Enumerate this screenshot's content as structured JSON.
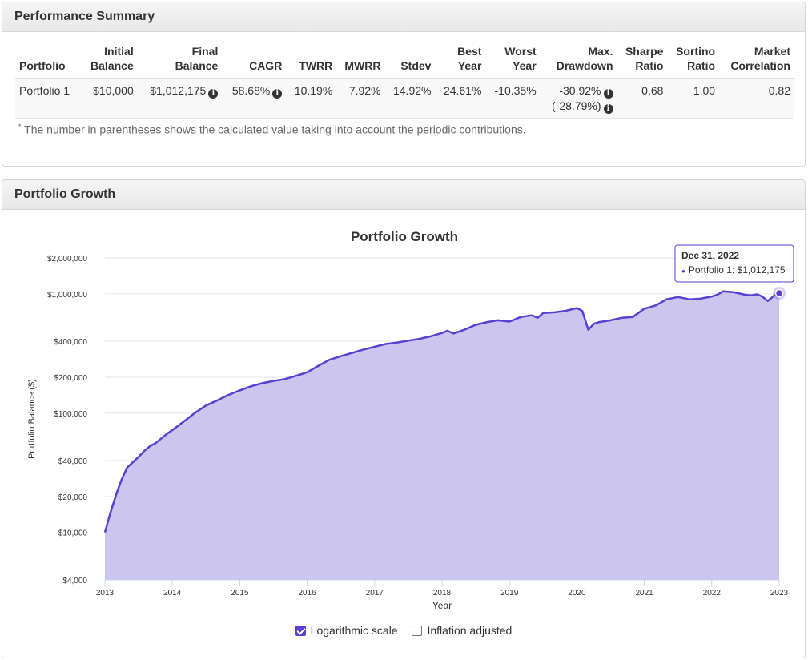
{
  "performance_summary": {
    "heading": "Performance Summary",
    "columns": [
      "Portfolio",
      "Initial\nBalance",
      "Final\nBalance",
      "CAGR",
      "TWRR",
      "MWRR",
      "Stdev",
      "Best\nYear",
      "Worst\nYear",
      "Max.\nDrawdown",
      "Sharpe\nRatio",
      "Sortino\nRatio",
      "Market\nCorrelation"
    ],
    "row": {
      "portfolio": "Portfolio 1",
      "initial_balance": "$10,000",
      "final_balance": "$1,012,175",
      "cagr": "58.68%",
      "twrr": "10.19%",
      "mwrr": "7.92%",
      "stdev": "14.92%",
      "best_year": "24.61%",
      "worst_year": "-10.35%",
      "max_drawdown": "-30.92%",
      "max_drawdown_contrib": "(-28.79%)",
      "sharpe": "0.68",
      "sortino": "1.00",
      "market_correlation": "0.82"
    },
    "info_icon": "i",
    "footnote_mark": "*",
    "footnote": "The number in parentheses shows the calculated value taking into account the periodic contributions."
  },
  "portfolio_growth": {
    "heading": "Portfolio Growth",
    "controls": {
      "log_scale_label": "Logarithmic scale",
      "log_scale_checked": true,
      "inflation_label": "Inflation adjusted",
      "inflation_checked": false
    },
    "tooltip": {
      "date": "Dec 31, 2022",
      "bullet": "●",
      "series_text": "Portfolio 1: $1,012,175"
    }
  },
  "colors": {
    "line": "#5a3fd1",
    "area": "#ccc5f0",
    "accent": "#5a3fd1"
  },
  "chart_data": {
    "type": "area",
    "title": "Portfolio Growth",
    "xlabel": "Year",
    "ylabel": "Portfolio Balance ($)",
    "y_scale": "log",
    "ylim": [
      4000,
      2000000
    ],
    "xlim": [
      2013,
      2023
    ],
    "yticks": [
      4000,
      10000,
      20000,
      40000,
      100000,
      200000,
      400000,
      1000000,
      2000000
    ],
    "ytick_labels": [
      "$4,000",
      "$10,000",
      "$20,000",
      "$40,000",
      "$100,000",
      "$200,000",
      "$400,000",
      "$1,000,000",
      "$2,000,000"
    ],
    "xticks": [
      2013,
      2014,
      2015,
      2016,
      2017,
      2018,
      2019,
      2020,
      2021,
      2022,
      2023
    ],
    "xtick_labels": [
      "2013",
      "2014",
      "2015",
      "2016",
      "2017",
      "2018",
      "2019",
      "2020",
      "2021",
      "2022",
      "2023"
    ],
    "grid": true,
    "legend": "none",
    "series": [
      {
        "name": "Portfolio 1",
        "x": [
          2013.0,
          2013.08,
          2013.17,
          2013.25,
          2013.33,
          2013.42,
          2013.5,
          2013.58,
          2013.67,
          2013.75,
          2013.83,
          2013.92,
          2014.0,
          2014.17,
          2014.33,
          2014.5,
          2014.67,
          2014.83,
          2015.0,
          2015.17,
          2015.33,
          2015.5,
          2015.67,
          2015.83,
          2016.0,
          2016.17,
          2016.33,
          2016.5,
          2016.67,
          2016.83,
          2017.0,
          2017.17,
          2017.33,
          2017.5,
          2017.67,
          2017.83,
          2018.0,
          2018.08,
          2018.17,
          2018.33,
          2018.5,
          2018.67,
          2018.83,
          2019.0,
          2019.17,
          2019.33,
          2019.42,
          2019.5,
          2019.67,
          2019.83,
          2020.0,
          2020.08,
          2020.17,
          2020.25,
          2020.33,
          2020.5,
          2020.67,
          2020.83,
          2021.0,
          2021.17,
          2021.33,
          2021.5,
          2021.67,
          2021.83,
          2022.0,
          2022.08,
          2022.17,
          2022.33,
          2022.5,
          2022.58,
          2022.67,
          2022.75,
          2022.83,
          2022.92,
          2023.0
        ],
        "y": [
          10000,
          14500,
          21000,
          28000,
          35000,
          39000,
          43000,
          48000,
          53000,
          56000,
          61000,
          67000,
          72000,
          85000,
          100000,
          116000,
          128000,
          142000,
          155000,
          168000,
          178000,
          186000,
          193000,
          205000,
          220000,
          250000,
          280000,
          300000,
          320000,
          340000,
          360000,
          380000,
          390000,
          405000,
          420000,
          440000,
          470000,
          490000,
          465000,
          500000,
          550000,
          580000,
          600000,
          585000,
          640000,
          660000,
          630000,
          690000,
          700000,
          720000,
          760000,
          720000,
          500000,
          560000,
          580000,
          600000,
          630000,
          640000,
          750000,
          800000,
          900000,
          940000,
          900000,
          910000,
          950000,
          980000,
          1050000,
          1030000,
          980000,
          970000,
          990000,
          950000,
          870000,
          960000,
          1012175
        ]
      }
    ]
  }
}
